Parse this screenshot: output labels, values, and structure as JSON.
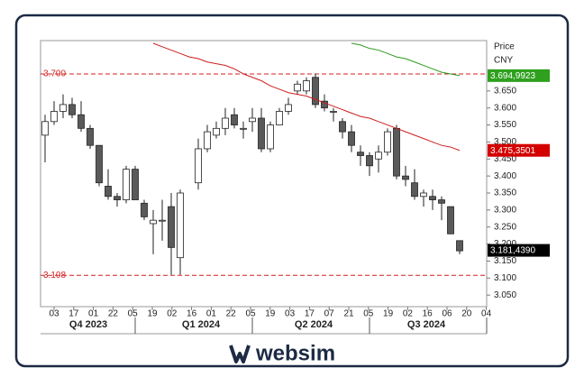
{
  "chart_data": {
    "type": "candlestick",
    "axis_label": "Price",
    "currency": "CNY",
    "ylim": [
      3.016,
      3.798
    ],
    "yticks": [
      {
        "value": 3.05,
        "label": "3.050"
      },
      {
        "value": 3.1,
        "label": "3.100"
      },
      {
        "value": 3.15,
        "label": "3.150"
      },
      {
        "value": 3.2,
        "label": "3.200"
      },
      {
        "value": 3.25,
        "label": "3.250"
      },
      {
        "value": 3.3,
        "label": "3.300"
      },
      {
        "value": 3.35,
        "label": "3.350"
      },
      {
        "value": 3.4,
        "label": "3.400"
      },
      {
        "value": 3.45,
        "label": "3.450"
      },
      {
        "value": 3.5,
        "label": "3.500"
      },
      {
        "value": 3.55,
        "label": "3.550"
      },
      {
        "value": 3.6,
        "label": "3.600"
      },
      {
        "value": 3.65,
        "label": "3.650"
      }
    ],
    "x_day_labels": [
      "03",
      "17",
      "01",
      "22",
      "05",
      "19",
      "02",
      "16",
      "01",
      "22",
      "05",
      "19",
      "03",
      "17",
      "07",
      "21",
      "05",
      "19",
      "02",
      "16",
      "06",
      "20",
      "04"
    ],
    "x_quarter_labels": [
      "Q4 2023",
      "Q1 2024",
      "Q2 2024",
      "Q3 2024"
    ],
    "categories": [
      null,
      null,
      null,
      null,
      null,
      null,
      null,
      null,
      null,
      null,
      null,
      null,
      null,
      null,
      null,
      null,
      null,
      null,
      null,
      null,
      null,
      null,
      null,
      null,
      null,
      null,
      null,
      null,
      null,
      null,
      null,
      null,
      null,
      null,
      null,
      null,
      null,
      null,
      null,
      null,
      null,
      null,
      null,
      null,
      null,
      null,
      null
    ],
    "open": [
      3.52,
      3.56,
      3.59,
      3.61,
      3.58,
      3.54,
      3.49,
      3.37,
      3.34,
      3.33,
      3.42,
      3.32,
      3.26,
      3.27,
      3.31,
      3.16,
      null,
      3.38,
      3.48,
      3.52,
      3.54,
      3.58,
      3.54,
      3.56,
      3.57,
      3.48,
      3.55,
      3.59,
      3.65,
      3.65,
      3.69,
      3.62,
      3.59,
      3.56,
      3.53,
      3.47,
      3.46,
      3.45,
      3.47,
      3.54,
      3.4,
      3.38,
      3.34,
      3.34,
      3.33,
      3.31,
      3.21
    ],
    "high": [
      3.58,
      3.62,
      3.64,
      3.63,
      3.62,
      3.55,
      3.49,
      3.42,
      3.35,
      3.43,
      3.43,
      3.33,
      3.3,
      3.33,
      3.35,
      3.36,
      null,
      3.51,
      3.55,
      3.56,
      3.6,
      3.6,
      3.56,
      3.6,
      3.6,
      3.56,
      3.6,
      3.63,
      3.68,
      3.69,
      3.7,
      3.64,
      3.6,
      3.57,
      3.55,
      3.49,
      3.47,
      3.49,
      3.54,
      3.55,
      3.43,
      3.42,
      3.36,
      3.36,
      3.34,
      3.31,
      3.21
    ],
    "low": [
      3.44,
      3.55,
      3.57,
      3.57,
      3.53,
      3.48,
      3.37,
      3.33,
      3.31,
      3.32,
      3.33,
      3.27,
      3.17,
      3.21,
      3.11,
      3.11,
      null,
      3.36,
      3.47,
      3.51,
      3.52,
      3.54,
      3.51,
      3.53,
      3.47,
      3.47,
      3.55,
      3.58,
      3.64,
      3.64,
      3.6,
      3.59,
      3.56,
      3.51,
      3.47,
      3.43,
      3.4,
      3.41,
      3.46,
      3.39,
      3.37,
      3.33,
      3.31,
      3.3,
      3.27,
      3.23,
      3.17
    ],
    "close": [
      3.56,
      3.59,
      3.61,
      3.58,
      3.54,
      3.49,
      3.38,
      3.34,
      3.33,
      3.42,
      3.33,
      3.28,
      3.27,
      3.27,
      3.19,
      3.35,
      null,
      3.48,
      3.53,
      3.54,
      3.57,
      3.55,
      3.54,
      3.57,
      3.48,
      3.55,
      3.59,
      3.61,
      3.67,
      3.68,
      3.61,
      3.6,
      3.59,
      3.53,
      3.49,
      3.46,
      3.43,
      3.47,
      3.53,
      3.4,
      3.39,
      3.34,
      3.35,
      3.33,
      3.32,
      3.23,
      3.18
    ],
    "up_color": "#ffffff",
    "down_color": "#5a5a5a",
    "series": [
      {
        "color": "#cc1f1f",
        "values": [
          null,
          null,
          null,
          null,
          null,
          null,
          null,
          null,
          null,
          null,
          null,
          null,
          3.79,
          3.78,
          3.77,
          3.76,
          3.75,
          3.745,
          3.735,
          3.73,
          3.725,
          3.715,
          3.7,
          3.69,
          3.68,
          3.665,
          3.655,
          3.645,
          3.64,
          3.635,
          3.625,
          3.615,
          3.605,
          3.595,
          3.585,
          3.575,
          3.57,
          3.56,
          3.55,
          3.54,
          3.53,
          3.52,
          3.51,
          3.5,
          3.49,
          3.485,
          3.475
        ]
      },
      {
        "color": "#2e9a1e",
        "values": [
          null,
          null,
          null,
          null,
          null,
          null,
          null,
          null,
          null,
          null,
          null,
          null,
          null,
          null,
          null,
          null,
          null,
          null,
          null,
          null,
          null,
          null,
          null,
          null,
          null,
          null,
          null,
          null,
          null,
          null,
          null,
          null,
          null,
          null,
          3.79,
          3.785,
          3.775,
          3.77,
          3.76,
          3.75,
          3.745,
          3.735,
          3.725,
          3.715,
          3.705,
          3.7,
          3.695
        ]
      }
    ],
    "hlines": [
      {
        "value": 3.7,
        "label": "3.700"
      },
      {
        "value": 3.108,
        "label": "3.108"
      }
    ],
    "hline_color": "#d42020",
    "value_tags": [
      {
        "value": 3.6949923,
        "label": "3.694,9923",
        "color": "#2ea01e"
      },
      {
        "value": 3.4753501,
        "label": "3.475,3501",
        "color": "#d40000"
      },
      {
        "value": 3.181439,
        "label": "3.181,4390",
        "color": "#000000"
      }
    ]
  },
  "footer": {
    "brand": "websim"
  }
}
